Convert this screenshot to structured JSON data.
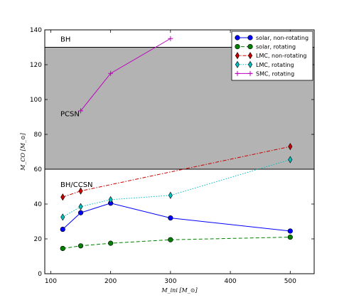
{
  "chart_data": {
    "type": "line",
    "xlabel": "M_ini [M_⊙]",
    "ylabel": "M_CO [M_⊙]",
    "xlim": [
      90,
      540
    ],
    "ylim": [
      0,
      140
    ],
    "xticks": [
      "100",
      "200",
      "300",
      "400",
      "500"
    ],
    "yticks": [
      "0",
      "20",
      "40",
      "60",
      "80",
      "100",
      "120",
      "140"
    ],
    "regions": [
      {
        "label": "BH",
        "y_from": 130,
        "y_to": 140,
        "color": "#ffffff"
      },
      {
        "label": "PCSN",
        "y_from": 60,
        "y_to": 130,
        "color": "#b3b3b3"
      },
      {
        "label": "BH/CCSN",
        "y_from": 0,
        "y_to": 60,
        "color": "#ffffff"
      }
    ],
    "legend_position": "top-right",
    "series": [
      {
        "name": "solar, non-rotating",
        "color": "#0000ff",
        "linestyle": "solid",
        "marker": "circle",
        "x": [
          120,
          150,
          200,
          300,
          500
        ],
        "y": [
          25.5,
          35,
          40.5,
          32,
          24.5
        ]
      },
      {
        "name": "solar, rotating",
        "color": "#007f00",
        "linestyle": "dashed",
        "marker": "circle",
        "x": [
          120,
          150,
          200,
          300,
          500
        ],
        "y": [
          14.5,
          16,
          17.5,
          19.5,
          21
        ]
      },
      {
        "name": "LMC, non-rotating",
        "color": "#cc0000",
        "linestyle": "dashdot",
        "marker": "diamond",
        "x": [
          120,
          150,
          500
        ],
        "y": [
          44,
          47.5,
          73
        ]
      },
      {
        "name": "LMC, rotating",
        "color": "#00bfbf",
        "linestyle": "dotted",
        "marker": "diamond",
        "x": [
          120,
          150,
          200,
          300,
          500
        ],
        "y": [
          32.5,
          38.5,
          42.5,
          45,
          65.5
        ]
      },
      {
        "name": "SMC, rotating",
        "color": "#bf00bf",
        "linestyle": "solid",
        "marker": "plus",
        "x": [
          150,
          200,
          300
        ],
        "y": [
          93.5,
          115,
          135
        ]
      }
    ]
  }
}
